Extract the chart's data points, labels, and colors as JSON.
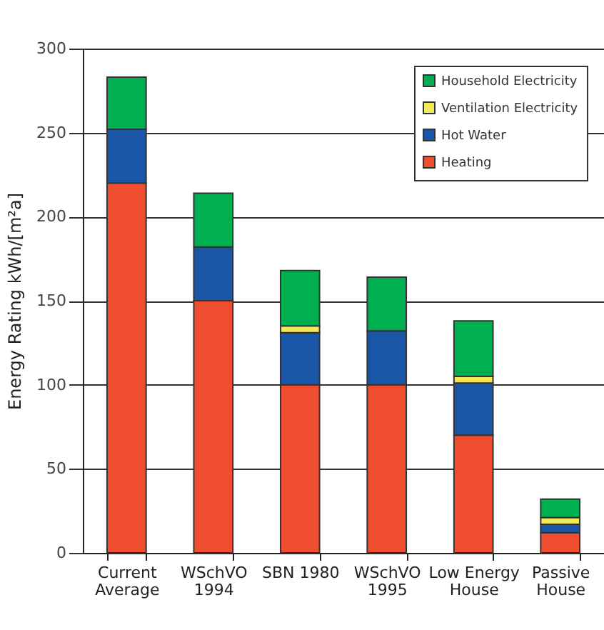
{
  "chart_data": {
    "type": "bar",
    "stacked": true,
    "ylabel": "Energy Rating kWh/[m²a]",
    "categories": [
      "Current\nAverage",
      "WSchVO\n1994",
      "SBN 1980",
      "WSchVO\n1995",
      "Low Energy\nHouse",
      "Passive\nHouse"
    ],
    "series": [
      {
        "name": "Heating",
        "color": "#f04e30",
        "values": [
          220,
          150,
          100,
          100,
          70,
          12
        ]
      },
      {
        "name": "Hot Water",
        "color": "#1a56a8",
        "values": [
          32,
          32,
          31,
          32,
          31,
          5
        ]
      },
      {
        "name": "Ventilation Electricity",
        "color": "#f0ea5a",
        "values": [
          null,
          null,
          4,
          null,
          4,
          4
        ]
      },
      {
        "name": "Household Electricity",
        "color": "#00b050",
        "values": [
          31,
          32,
          33,
          32,
          33,
          11
        ]
      }
    ],
    "ylim": [
      0,
      300
    ],
    "yticks": [
      0,
      50,
      100,
      150,
      200,
      250,
      300
    ],
    "grid": "y",
    "legend": "top right"
  }
}
